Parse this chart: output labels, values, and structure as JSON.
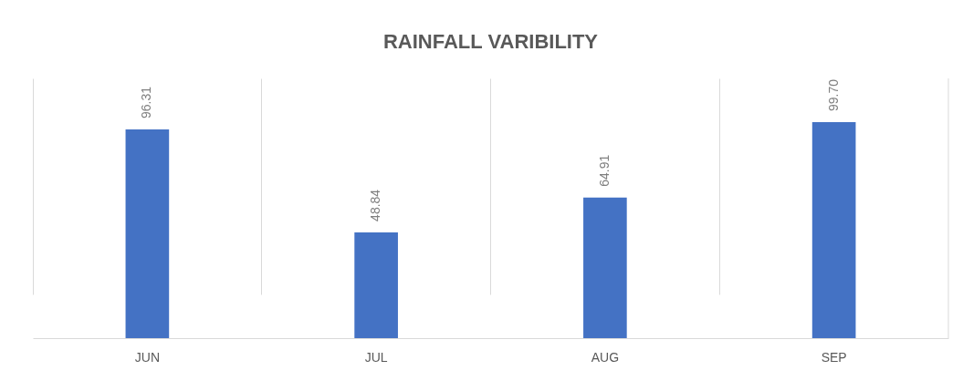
{
  "chart_data": {
    "type": "bar",
    "title": "RAINFALL VARIBILITY",
    "categories": [
      "JUN",
      "JUL",
      "AUG",
      "SEP"
    ],
    "values": [
      96.31,
      48.84,
      64.91,
      99.7
    ],
    "value_labels": [
      "96.31",
      "48.84",
      "64.91",
      "99.70"
    ],
    "color": "#4472c4",
    "grid": "x"
  }
}
